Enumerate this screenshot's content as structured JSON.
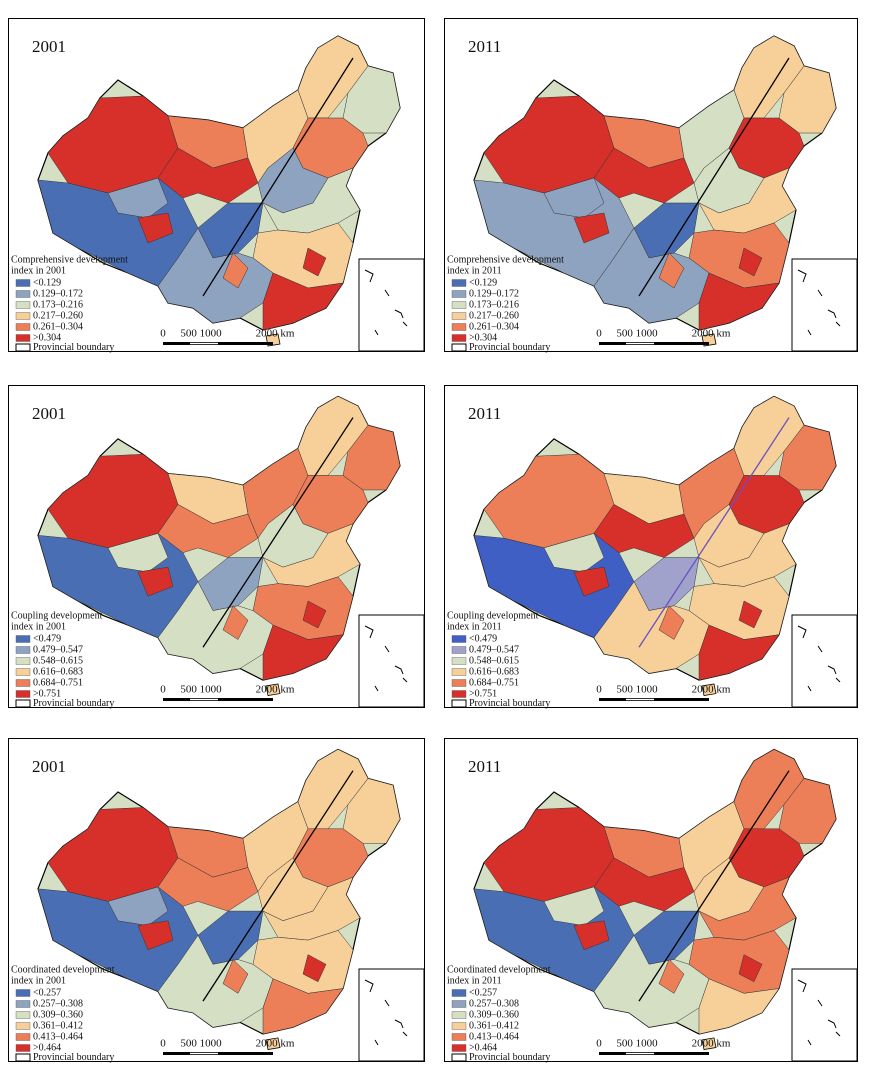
{
  "panels": [
    {
      "year": "2001",
      "legend_title": [
        "Comprehensive development",
        "index in 2001"
      ],
      "legend_items": [
        {
          "label": "<0.129",
          "color": "#4a6eb4"
        },
        {
          "label": "0.129–0.172",
          "color": "#8ea3c0"
        },
        {
          "label": "0.173–0.216",
          "color": "#d4dfc4"
        },
        {
          "label": "0.217–0.260",
          "color": "#f7cf98"
        },
        {
          "label": "0.261–0.304",
          "color": "#ec7e58"
        },
        {
          "label": ">0.304",
          "color": "#d7302a"
        }
      ],
      "boundary": "Provincial boundary",
      "scale": [
        "0",
        "500 1000",
        "2000 km"
      ]
    },
    {
      "year": "2011",
      "legend_title": [
        "Comprehensive development",
        "index in 2011"
      ],
      "legend_items": [
        {
          "label": "<0.129",
          "color": "#4a6eb4"
        },
        {
          "label": "0.129–0.172",
          "color": "#8ea3c0"
        },
        {
          "label": "0.173–0.216",
          "color": "#d4dfc4"
        },
        {
          "label": "0.217–0.260",
          "color": "#f7cf98"
        },
        {
          "label": "0.261–0.304",
          "color": "#ec7e58"
        },
        {
          "label": ">0.304",
          "color": "#d7302a"
        }
      ],
      "boundary": "Provincial boundary",
      "scale": [
        "0",
        "500 1000",
        "2000 km"
      ]
    },
    {
      "year": "2001",
      "legend_title": [
        "Coupling development",
        "index in 2001"
      ],
      "legend_items": [
        {
          "label": "<0.479",
          "color": "#4a6eb4"
        },
        {
          "label": "0.479–0.547",
          "color": "#8ea3c0"
        },
        {
          "label": "0.548–0.615",
          "color": "#d4dfc4"
        },
        {
          "label": "0.616–0.683",
          "color": "#f7cf98"
        },
        {
          "label": "0.684–0.751",
          "color": "#ec7e58"
        },
        {
          "label": ">0.751",
          "color": "#d7302a"
        }
      ],
      "boundary": "Provincial boundary",
      "scale": [
        "0",
        "500 1000",
        "2000 km"
      ]
    },
    {
      "year": "2011",
      "legend_title": [
        "Coupling development",
        "index in 2011"
      ],
      "legend_items": [
        {
          "label": "<0.479",
          "color": "#3f5fc4"
        },
        {
          "label": "0.479–0.547",
          "color": "#a0a2cc"
        },
        {
          "label": "0.548–0.615",
          "color": "#d4dfc4"
        },
        {
          "label": "0.616–0.683",
          "color": "#f7cf98"
        },
        {
          "label": "0.684–0.751",
          "color": "#ec7e58"
        },
        {
          "label": ">0.751",
          "color": "#d7302a"
        }
      ],
      "boundary": "Provincial boundary",
      "scale": [
        "0",
        "500 1000",
        "2000 km"
      ]
    },
    {
      "year": "2001",
      "legend_title": [
        "Coordinated development",
        "index in 2001"
      ],
      "legend_items": [
        {
          "label": "<0.257",
          "color": "#4a6eb4"
        },
        {
          "label": "0.257–0.308",
          "color": "#8ea3c0"
        },
        {
          "label": "0.309–0.360",
          "color": "#d4dfc4"
        },
        {
          "label": "0.361–0.412",
          "color": "#f7cf98"
        },
        {
          "label": "0.413–0.464",
          "color": "#ec7e58"
        },
        {
          "label": ">0.464",
          "color": "#d7302a"
        }
      ],
      "boundary": "Provincial boundary",
      "scale": [
        "0",
        "500 1000",
        "2000 km"
      ]
    },
    {
      "year": "2011",
      "legend_title": [
        "Coordinated development",
        "index in 2011"
      ],
      "legend_items": [
        {
          "label": "<0.257",
          "color": "#4a6eb4"
        },
        {
          "label": "0.257–0.308",
          "color": "#8ea3c0"
        },
        {
          "label": "0.309–0.360",
          "color": "#d4dfc4"
        },
        {
          "label": "0.361–0.412",
          "color": "#f7cf98"
        },
        {
          "label": "0.413–0.464",
          "color": "#ec7e58"
        },
        {
          "label": ">0.464",
          "color": "#d7302a"
        }
      ],
      "boundary": "Provincial boundary",
      "scale": [
        "0",
        "500 1000",
        "2000 km"
      ]
    }
  ]
}
